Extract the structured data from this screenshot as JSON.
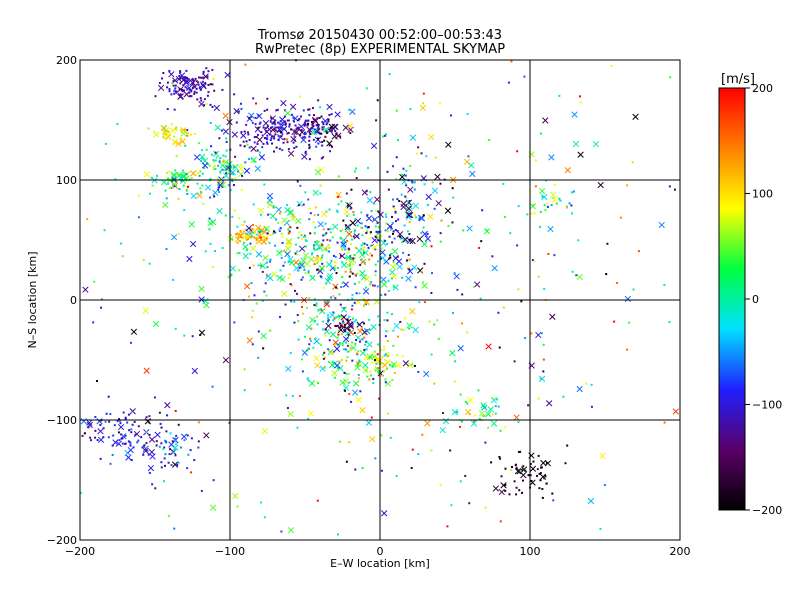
{
  "chart_data": {
    "type": "scatter",
    "title": "Tromsø 20150430 00:52:00–00:53:43",
    "subtitle": "RwPretec (8p) EXPERIMENTAL SKYMAP",
    "xlabel": "E–W location [km]",
    "ylabel": "N–S location [km]",
    "xlim": [
      -200,
      200
    ],
    "ylim": [
      -200,
      200
    ],
    "xticks": [
      -200,
      -100,
      0,
      100,
      200
    ],
    "yticks": [
      -200,
      -100,
      0,
      100,
      200
    ],
    "x_tick_labels": [
      "−200",
      "−100",
      "0",
      "100",
      "200"
    ],
    "y_tick_labels": [
      "−200",
      "−100",
      "0",
      "100",
      "200"
    ],
    "grid": true,
    "colorbar": {
      "label": "[m/s]",
      "range": [
        -200,
        200
      ],
      "ticks": [
        200,
        100,
        0,
        -100,
        -200
      ],
      "tick_labels": [
        "200",
        "100",
        "0",
        "−100",
        "−200"
      ],
      "colors": [
        "#000000",
        "#5a0068",
        "#2020ff",
        "#00e0ff",
        "#00ff40",
        "#ffff00",
        "#ff8000",
        "#ff0000"
      ]
    },
    "clusters": [
      {
        "x": -125,
        "y": 178,
        "sx": 10,
        "sy": 9,
        "n": 120,
        "v": -120,
        "sv": 20
      },
      {
        "x": -65,
        "y": 140,
        "sx": 15,
        "sy": 10,
        "n": 200,
        "v": -115,
        "sv": 25
      },
      {
        "x": -40,
        "y": 143,
        "sx": 7,
        "sy": 6,
        "n": 70,
        "v": -140,
        "sv": 30
      },
      {
        "x": -140,
        "y": 140,
        "sx": 8,
        "sy": 6,
        "n": 40,
        "v": 90,
        "sv": 30
      },
      {
        "x": -105,
        "y": 110,
        "sx": 12,
        "sy": 10,
        "n": 90,
        "v": 0,
        "sv": 60
      },
      {
        "x": -135,
        "y": 98,
        "sx": 10,
        "sy": 6,
        "n": 60,
        "v": 30,
        "sv": 60
      },
      {
        "x": -85,
        "y": 55,
        "sx": 6,
        "sy": 4,
        "n": 60,
        "v": 120,
        "sv": 20
      },
      {
        "x": -40,
        "y": 40,
        "sx": 35,
        "sy": 25,
        "n": 450,
        "v": 0,
        "sv": 80
      },
      {
        "x": 10,
        "y": 65,
        "sx": 18,
        "sy": 30,
        "n": 150,
        "v": -90,
        "sv": 70
      },
      {
        "x": -25,
        "y": -35,
        "sx": 15,
        "sy": 20,
        "n": 160,
        "v": 20,
        "sv": 90
      },
      {
        "x": -25,
        "y": -22,
        "sx": 5,
        "sy": 4,
        "n": 30,
        "v": -160,
        "sv": 20
      },
      {
        "x": 0,
        "y": -50,
        "sx": 10,
        "sy": 8,
        "n": 60,
        "v": 60,
        "sv": 40
      },
      {
        "x": -170,
        "y": -110,
        "sx": 15,
        "sy": 12,
        "n": 90,
        "v": -110,
        "sv": 25
      },
      {
        "x": -140,
        "y": -125,
        "sx": 12,
        "sy": 12,
        "n": 60,
        "v": -80,
        "sv": 40
      },
      {
        "x": 95,
        "y": -145,
        "sx": 10,
        "sy": 10,
        "n": 60,
        "v": -185,
        "sv": 15
      },
      {
        "x": 65,
        "y": -95,
        "sx": 8,
        "sy": 8,
        "n": 30,
        "v": 40,
        "sv": 50
      },
      {
        "x": 110,
        "y": 80,
        "sx": 10,
        "sy": 8,
        "n": 30,
        "v": 30,
        "sv": 50
      },
      {
        "x": 0,
        "y": 0,
        "sx": 110,
        "sy": 110,
        "n": 500,
        "v": 0,
        "sv": 110
      }
    ]
  }
}
